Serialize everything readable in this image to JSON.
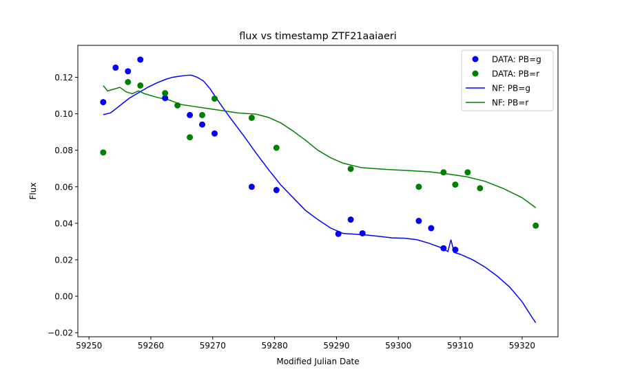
{
  "chart_data": {
    "type": "scatter",
    "title": "flux vs timestamp ZTF21aaiaeri",
    "xlabel": "Modified Julian Date",
    "ylabel": "Flux",
    "xlim": [
      59248.2,
      59325.8
    ],
    "ylim": [
      -0.0222,
      0.1375
    ],
    "xticks": [
      59250,
      59260,
      59270,
      59280,
      59290,
      59300,
      59310,
      59320
    ],
    "yticks": [
      -0.02,
      0.0,
      0.02,
      0.04,
      0.06,
      0.08,
      0.1,
      0.12
    ],
    "legend_position": "top-right",
    "grid": false,
    "series": [
      {
        "name": "DATA: PB=g",
        "kind": "scatter",
        "color": "#0000ff",
        "points": [
          [
            59252.3,
            0.1064
          ],
          [
            59254.3,
            0.1253
          ],
          [
            59256.3,
            0.1233
          ],
          [
            59258.3,
            0.1297
          ],
          [
            59262.3,
            0.1086
          ],
          [
            59266.3,
            0.0993
          ],
          [
            59268.3,
            0.0941
          ],
          [
            59270.3,
            0.0892
          ],
          [
            59276.3,
            0.06
          ],
          [
            59280.3,
            0.0582
          ],
          [
            59290.3,
            0.0342
          ],
          [
            59292.3,
            0.042
          ],
          [
            59294.2,
            0.0345
          ],
          [
            59303.3,
            0.0413
          ],
          [
            59305.3,
            0.0373
          ],
          [
            59307.3,
            0.0263
          ],
          [
            59309.2,
            0.0255
          ]
        ]
      },
      {
        "name": "DATA: PB=r",
        "kind": "scatter",
        "color": "#008000",
        "points": [
          [
            59252.3,
            0.0788
          ],
          [
            59256.3,
            0.1174
          ],
          [
            59258.3,
            0.1155
          ],
          [
            59262.3,
            0.1113
          ],
          [
            59264.3,
            0.1046
          ],
          [
            59266.3,
            0.0871
          ],
          [
            59268.3,
            0.0993
          ],
          [
            59270.3,
            0.1083
          ],
          [
            59276.3,
            0.0978
          ],
          [
            59280.3,
            0.0814
          ],
          [
            59292.3,
            0.0698
          ],
          [
            59303.3,
            0.06
          ],
          [
            59307.3,
            0.0679
          ],
          [
            59309.2,
            0.0612
          ],
          [
            59311.2,
            0.0679
          ],
          [
            59313.2,
            0.0592
          ],
          [
            59322.2,
            0.0387
          ]
        ]
      },
      {
        "name": "NF: PB=g",
        "kind": "line",
        "color": "#0000ff",
        "points": [
          [
            59252.3,
            0.0995
          ],
          [
            59253.5,
            0.1005
          ],
          [
            59255.0,
            0.1045
          ],
          [
            59256.5,
            0.1085
          ],
          [
            59258.0,
            0.1115
          ],
          [
            59259.5,
            0.1145
          ],
          [
            59261.0,
            0.117
          ],
          [
            59262.5,
            0.119
          ],
          [
            59263.5,
            0.12
          ],
          [
            59264.5,
            0.1205
          ],
          [
            59265.5,
            0.121
          ],
          [
            59266.5,
            0.1212
          ],
          [
            59267.5,
            0.12
          ],
          [
            59268.5,
            0.118
          ],
          [
            59269.5,
            0.114
          ],
          [
            59270.5,
            0.109
          ],
          [
            59271.5,
            0.104
          ],
          [
            59273.0,
            0.097
          ],
          [
            59275.0,
            0.088
          ],
          [
            59277.0,
            0.0785
          ],
          [
            59279.0,
            0.0695
          ],
          [
            59281.0,
            0.061
          ],
          [
            59283.0,
            0.054
          ],
          [
            59285.0,
            0.047
          ],
          [
            59287.0,
            0.042
          ],
          [
            59289.0,
            0.0375
          ],
          [
            59291.0,
            0.0345
          ],
          [
            59293.0,
            0.034
          ],
          [
            59295.0,
            0.0335
          ],
          [
            59297.0,
            0.0328
          ],
          [
            59299.0,
            0.032
          ],
          [
            59301.0,
            0.0318
          ],
          [
            59303.0,
            0.031
          ],
          [
            59305.0,
            0.029
          ],
          [
            59307.0,
            0.0265
          ],
          [
            59308.0,
            0.0245
          ],
          [
            59308.5,
            0.031
          ],
          [
            59309.0,
            0.024
          ],
          [
            59310.0,
            0.023
          ],
          [
            59312.0,
            0.02
          ],
          [
            59314.0,
            0.016
          ],
          [
            59316.0,
            0.011
          ],
          [
            59318.0,
            0.005
          ],
          [
            59320.0,
            -0.003
          ],
          [
            59321.5,
            -0.011
          ],
          [
            59322.2,
            -0.0145
          ]
        ]
      },
      {
        "name": "NF: PB=r",
        "kind": "line",
        "color": "#008000",
        "points": [
          [
            59252.3,
            0.1155
          ],
          [
            59253.0,
            0.1125
          ],
          [
            59254.0,
            0.1135
          ],
          [
            59255.0,
            0.1145
          ],
          [
            59256.0,
            0.112
          ],
          [
            59257.0,
            0.111
          ],
          [
            59258.0,
            0.1125
          ],
          [
            59259.0,
            0.111
          ],
          [
            59261.0,
            0.109
          ],
          [
            59263.0,
            0.1075
          ],
          [
            59265.0,
            0.105
          ],
          [
            59267.0,
            0.104
          ],
          [
            59269.0,
            0.103
          ],
          [
            59271.0,
            0.102
          ],
          [
            59274.0,
            0.1005
          ],
          [
            59277.0,
            0.0998
          ],
          [
            59279.0,
            0.098
          ],
          [
            59281.0,
            0.095
          ],
          [
            59283.0,
            0.0905
          ],
          [
            59285.0,
            0.0855
          ],
          [
            59287.0,
            0.08
          ],
          [
            59289.0,
            0.076
          ],
          [
            59291.0,
            0.073
          ],
          [
            59294.0,
            0.0705
          ],
          [
            59298.0,
            0.0695
          ],
          [
            59302.0,
            0.0688
          ],
          [
            59305.0,
            0.0682
          ],
          [
            59308.0,
            0.067
          ],
          [
            59311.0,
            0.0655
          ],
          [
            59314.0,
            0.063
          ],
          [
            59317.0,
            0.059
          ],
          [
            59320.0,
            0.054
          ],
          [
            59322.2,
            0.0485
          ]
        ]
      }
    ]
  }
}
